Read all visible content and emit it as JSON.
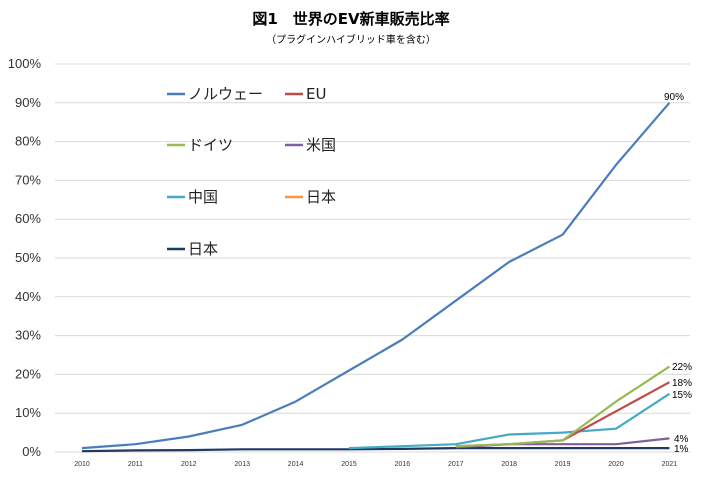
{
  "chart_data": {
    "type": "line",
    "title": "図1　世界のEV新車販売比率",
    "subtitle": "（プラグインハイブリッド車を含む）",
    "xlabel": "",
    "ylabel": "",
    "ylim": [
      0,
      100
    ],
    "y_tick_labels": [
      "0%",
      "10%",
      "20%",
      "30%",
      "40%",
      "50%",
      "60%",
      "70%",
      "80%",
      "90%",
      "100%"
    ],
    "x": [
      "2010",
      "2011",
      "2012",
      "2013",
      "2014",
      "2015",
      "2016",
      "2017",
      "2018",
      "2019",
      "2020",
      "2021"
    ],
    "legend_placement": "top-left, inside plot, two columns",
    "series": [
      {
        "name": "ノルウェー",
        "color": "#4a7ebb",
        "values": [
          1,
          2,
          4,
          7,
          13,
          21,
          29,
          39,
          49,
          56,
          74,
          90
        ],
        "end_label": "90%"
      },
      {
        "name": "EU",
        "color": "#be4b48",
        "values": [
          null,
          null,
          null,
          null,
          null,
          null,
          null,
          1.5,
          2,
          3,
          10.5,
          18
        ],
        "end_label": "18%"
      },
      {
        "name": "ドイツ",
        "color": "#98b954",
        "values": [
          null,
          null,
          null,
          null,
          null,
          null,
          null,
          1.5,
          2,
          3,
          13,
          22
        ],
        "end_label": "22%"
      },
      {
        "name": "米国",
        "color": "#7d60a0",
        "values": [
          null,
          null,
          null,
          null,
          null,
          null,
          null,
          1.2,
          2,
          2,
          2,
          3.5
        ],
        "end_label": "4%"
      },
      {
        "name": "中国",
        "color": "#46aac5",
        "values": [
          null,
          null,
          null,
          null,
          null,
          1,
          1.5,
          2,
          4.5,
          5,
          6,
          15
        ],
        "end_label": "15%"
      },
      {
        "name": "日本",
        "color": "#f79646",
        "values": [
          null,
          null,
          null,
          null,
          null,
          null,
          null,
          null,
          null,
          null,
          null,
          null
        ],
        "end_label": ""
      },
      {
        "name": "日本",
        "color": "#1f3864",
        "values": [
          0.2,
          0.4,
          0.5,
          0.7,
          0.7,
          0.7,
          0.8,
          1,
          1,
          1,
          1,
          1
        ],
        "end_label": "1%"
      }
    ]
  }
}
